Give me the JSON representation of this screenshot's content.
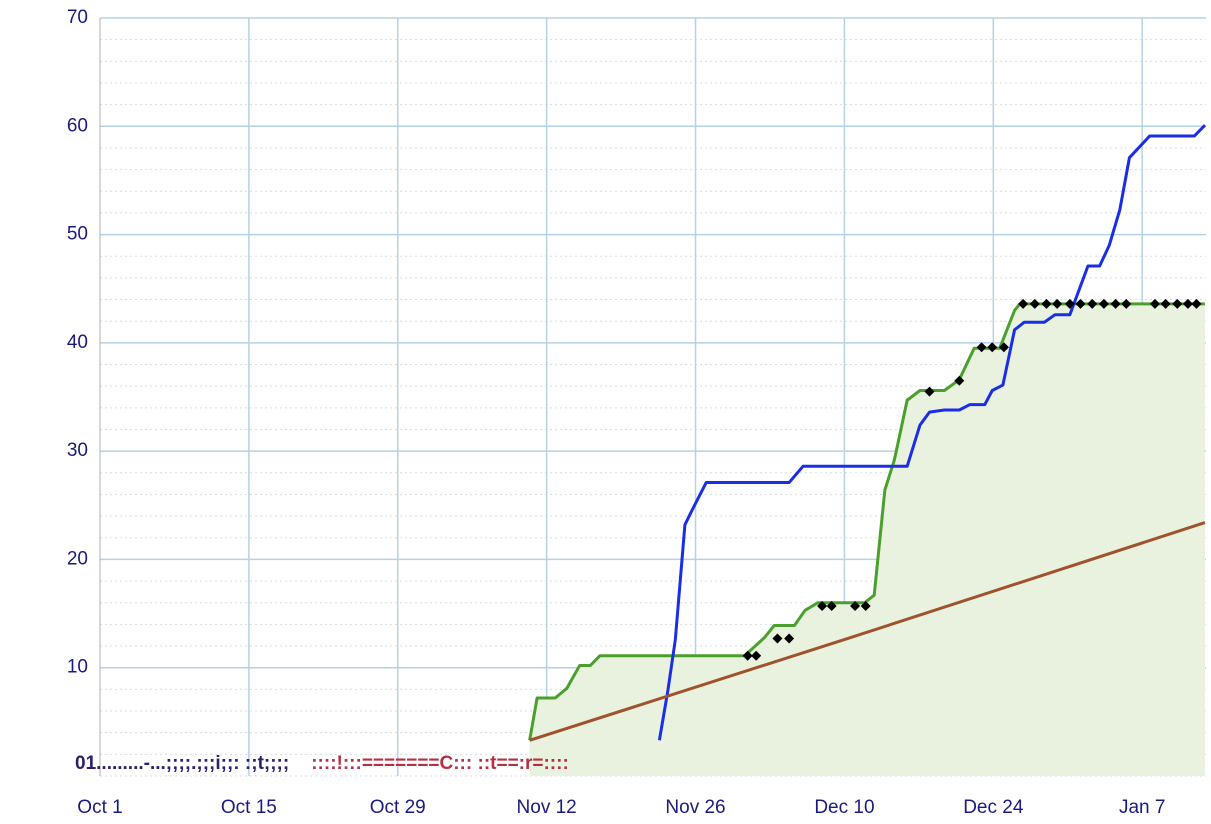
{
  "chart_data": {
    "type": "line",
    "xlim": [
      0,
      104
    ],
    "xticks": [
      {
        "value": 0,
        "label": "Oct 1"
      },
      {
        "value": 14,
        "label": "Oct 15"
      },
      {
        "value": 28,
        "label": "Oct 29"
      },
      {
        "value": 42,
        "label": "Nov 12"
      },
      {
        "value": 56,
        "label": "Nov 26"
      },
      {
        "value": 70,
        "label": "Dec 10"
      },
      {
        "value": 84,
        "label": "Dec 24"
      },
      {
        "value": 98,
        "label": "Jan 7"
      }
    ],
    "ylim": [
      0,
      70
    ],
    "yticks": [
      10,
      20,
      30,
      40,
      50,
      60,
      70
    ],
    "grid": true,
    "series": [
      {
        "style": "line",
        "color": "#4aa02c",
        "fill": "#e9f1df",
        "x": [
          40.4,
          41.1,
          42.8,
          43.9,
          45.1,
          46.1,
          47,
          60.6,
          62.5,
          63.4,
          65.3,
          66.3,
          67.5,
          71.9,
          72.8,
          73.8,
          74.7,
          75.9,
          77.1,
          79.4,
          80.8,
          82.2,
          84.6,
          86,
          86.5,
          103.9
        ],
        "y": [
          3.3,
          7.2,
          7.2,
          8.1,
          10.2,
          10.2,
          11.1,
          11.1,
          12.8,
          13.9,
          13.9,
          15.3,
          16,
          16,
          16.7,
          26.4,
          29.2,
          34.7,
          35.6,
          35.6,
          36.6,
          39.5,
          39.5,
          43,
          43.6,
          43.6
        ]
      },
      {
        "style": "line",
        "color": "#1a2ee8",
        "x": [
          52.6,
          53.4,
          54.1,
          55,
          55.7,
          57,
          64.8,
          66.1,
          75.9,
          77.1,
          78,
          79.4,
          80.8,
          81.8,
          83.2,
          83.9,
          84.9,
          86,
          86.9,
          88.8,
          89.8,
          91.2,
          92.9,
          94,
          94.9,
          95.9,
          96.8,
          98.7,
          102.9,
          103.9
        ],
        "y": [
          3.3,
          7.9,
          12.6,
          23.2,
          24.6,
          27.1,
          27.1,
          28.6,
          28.6,
          32.4,
          33.6,
          33.8,
          33.8,
          34.3,
          34.3,
          35.6,
          36.1,
          41.2,
          41.9,
          41.9,
          42.6,
          42.6,
          47.1,
          47.1,
          49,
          52.3,
          57.1,
          59.1,
          59.1,
          60.1
        ]
      },
      {
        "style": "line",
        "color": "#a0522d",
        "x": [
          40.4,
          70,
          103.9
        ],
        "y": [
          3.3,
          12.6,
          23.4
        ]
      },
      {
        "style": "markers",
        "color": "#000000",
        "x": [
          60.9,
          61.7,
          63.7,
          64.8,
          67.9,
          68.8,
          71,
          72,
          78,
          80.8,
          82.9,
          83.9,
          85,
          86.8,
          87.9,
          89,
          90,
          91.2,
          92.2,
          93.3,
          94.4,
          95.5,
          96.5,
          99.2,
          100.2,
          101.3,
          102.3,
          103.1
        ],
        "y": [
          11.1,
          11.1,
          12.7,
          12.7,
          15.7,
          15.7,
          15.7,
          15.7,
          35.5,
          36.5,
          39.6,
          39.6,
          39.6,
          43.6,
          43.6,
          43.6,
          43.6,
          43.6,
          43.6,
          43.6,
          43.6,
          43.6,
          43.6,
          43.6,
          43.6,
          43.6,
          43.6,
          43.6
        ]
      }
    ],
    "annotations": [
      {
        "text": "01.........-...;;;;.;;;i;;: :;t;;;;",
        "color": "#2a2070"
      },
      {
        "text": "::::!:::=======C::: ::t==:r=::::",
        "color": "#b83040"
      }
    ]
  }
}
